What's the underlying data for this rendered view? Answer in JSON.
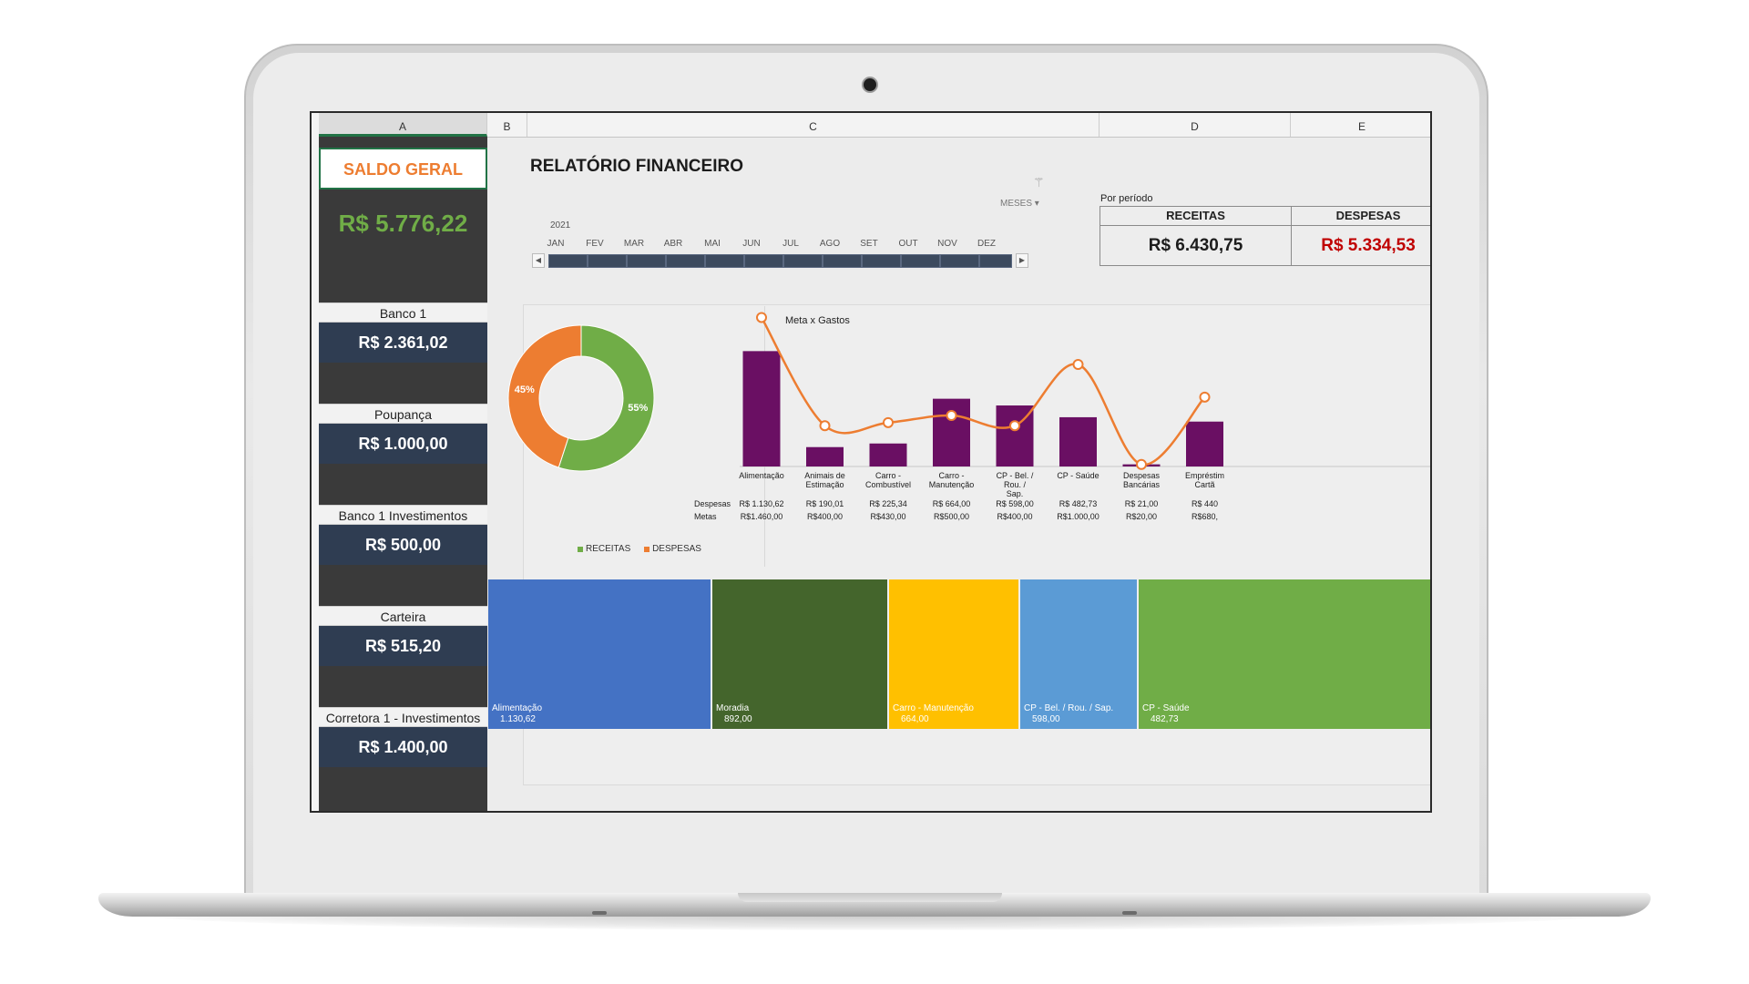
{
  "colors": {
    "receitas": "#70ad47",
    "despesas": "#ed7d31",
    "despesas_value": "#c00000",
    "bar": "#6a0f63",
    "line": "#ed7d31",
    "saldo_value": "#70ad47",
    "saldo_title": "#ed7d31",
    "account_value_bg": "#2f3d52",
    "treemap": [
      "#4472c4",
      "#44652c",
      "#ffc000",
      "#5b9bd5",
      "#70ad47"
    ]
  },
  "columns": [
    "A",
    "B",
    "C",
    "D",
    "E"
  ],
  "sidebar": {
    "saldo_title": "SALDO GERAL",
    "saldo_value": "R$ 5.776,22",
    "accounts": [
      {
        "label": "Banco 1",
        "value": "R$ 2.361,02"
      },
      {
        "label": "Poupança",
        "value": "R$ 1.000,00"
      },
      {
        "label": "Banco 1 Investimentos",
        "value": "R$ 500,00"
      },
      {
        "label": "Carteira",
        "value": "R$ 515,20"
      },
      {
        "label": "Corretora 1 - Investimentos",
        "value": "R$ 1.400,00"
      }
    ]
  },
  "report": {
    "title": "RELATÓRIO FINANCEIRO",
    "filter_icon": "clear-filter-icon",
    "slicer_label": "MESES",
    "year": "2021",
    "months": [
      "JAN",
      "FEV",
      "MAR",
      "ABR",
      "MAI",
      "JUN",
      "JUL",
      "AGO",
      "SET",
      "OUT",
      "NOV",
      "DEZ"
    ],
    "period_label": "Por período",
    "receitas_label": "RECEITAS",
    "receitas_value": "R$ 6.430,75",
    "despesas_label": "DESPESAS",
    "despesas_value": "R$ 5.334,53"
  },
  "chart_data": [
    {
      "type": "pie",
      "donut": true,
      "labels": [
        "RECEITAS",
        "DESPESAS"
      ],
      "values": [
        55,
        45
      ],
      "data_labels": [
        "55%",
        "45%"
      ],
      "legend": "bottom"
    },
    {
      "type": "bar",
      "title": "Meta x Gastos",
      "categories": [
        "Alimentação",
        "Animais de Estimação",
        "Carro - Combustível",
        "Carro - Manutenção",
        "CP - Bel. / Rou. / Sap.",
        "CP - Saúde",
        "Despesas Bancárias",
        "Empréstimo Cartão"
      ],
      "category_display": [
        "Alimentação",
        "Animais de\nEstimação",
        "Carro -\nCombustível",
        "Carro -\nManutenção",
        "CP - Bel. /\nRou. /\nSap.",
        "CP - Saúde",
        "Despesas\nBancárias",
        "Empréstim\nCartã"
      ],
      "series": [
        {
          "name": "Despesas",
          "type": "bar",
          "values": [
            1130.62,
            190.01,
            225.34,
            664.0,
            598.0,
            482.73,
            21.0,
            440.0
          ]
        },
        {
          "name": "Metas",
          "type": "line",
          "values": [
            1460.0,
            400.0,
            430.0,
            500.0,
            400.0,
            1000.0,
            20.0,
            680.0
          ]
        }
      ],
      "table_rows": [
        {
          "label": "Despesas",
          "cells": [
            "R$ 1.130,62",
            "R$ 190,01",
            "R$ 225,34",
            "R$ 664,00",
            "R$ 598,00",
            "R$ 482,73",
            "R$ 21,00",
            "R$ 440"
          ]
        },
        {
          "label": "Metas",
          "cells": [
            "R$1.460,00",
            "R$400,00",
            "R$430,00",
            "R$500,00",
            "R$400,00",
            "R$1.000,00",
            "R$20,00",
            "R$680,"
          ]
        }
      ],
      "ylim": [
        0,
        1500
      ]
    },
    {
      "type": "treemap",
      "labels": [
        "Alimentação",
        "Moradia",
        "Carro - Manutenção",
        "CP - Bel. / Rou. / Sap.",
        "CP - Saúde"
      ],
      "values": [
        1130.62,
        892.0,
        664.0,
        598.0,
        482.73
      ],
      "value_labels": [
        "1.130,62",
        "892,00",
        "664,00",
        "598,00",
        "482,73"
      ]
    }
  ]
}
